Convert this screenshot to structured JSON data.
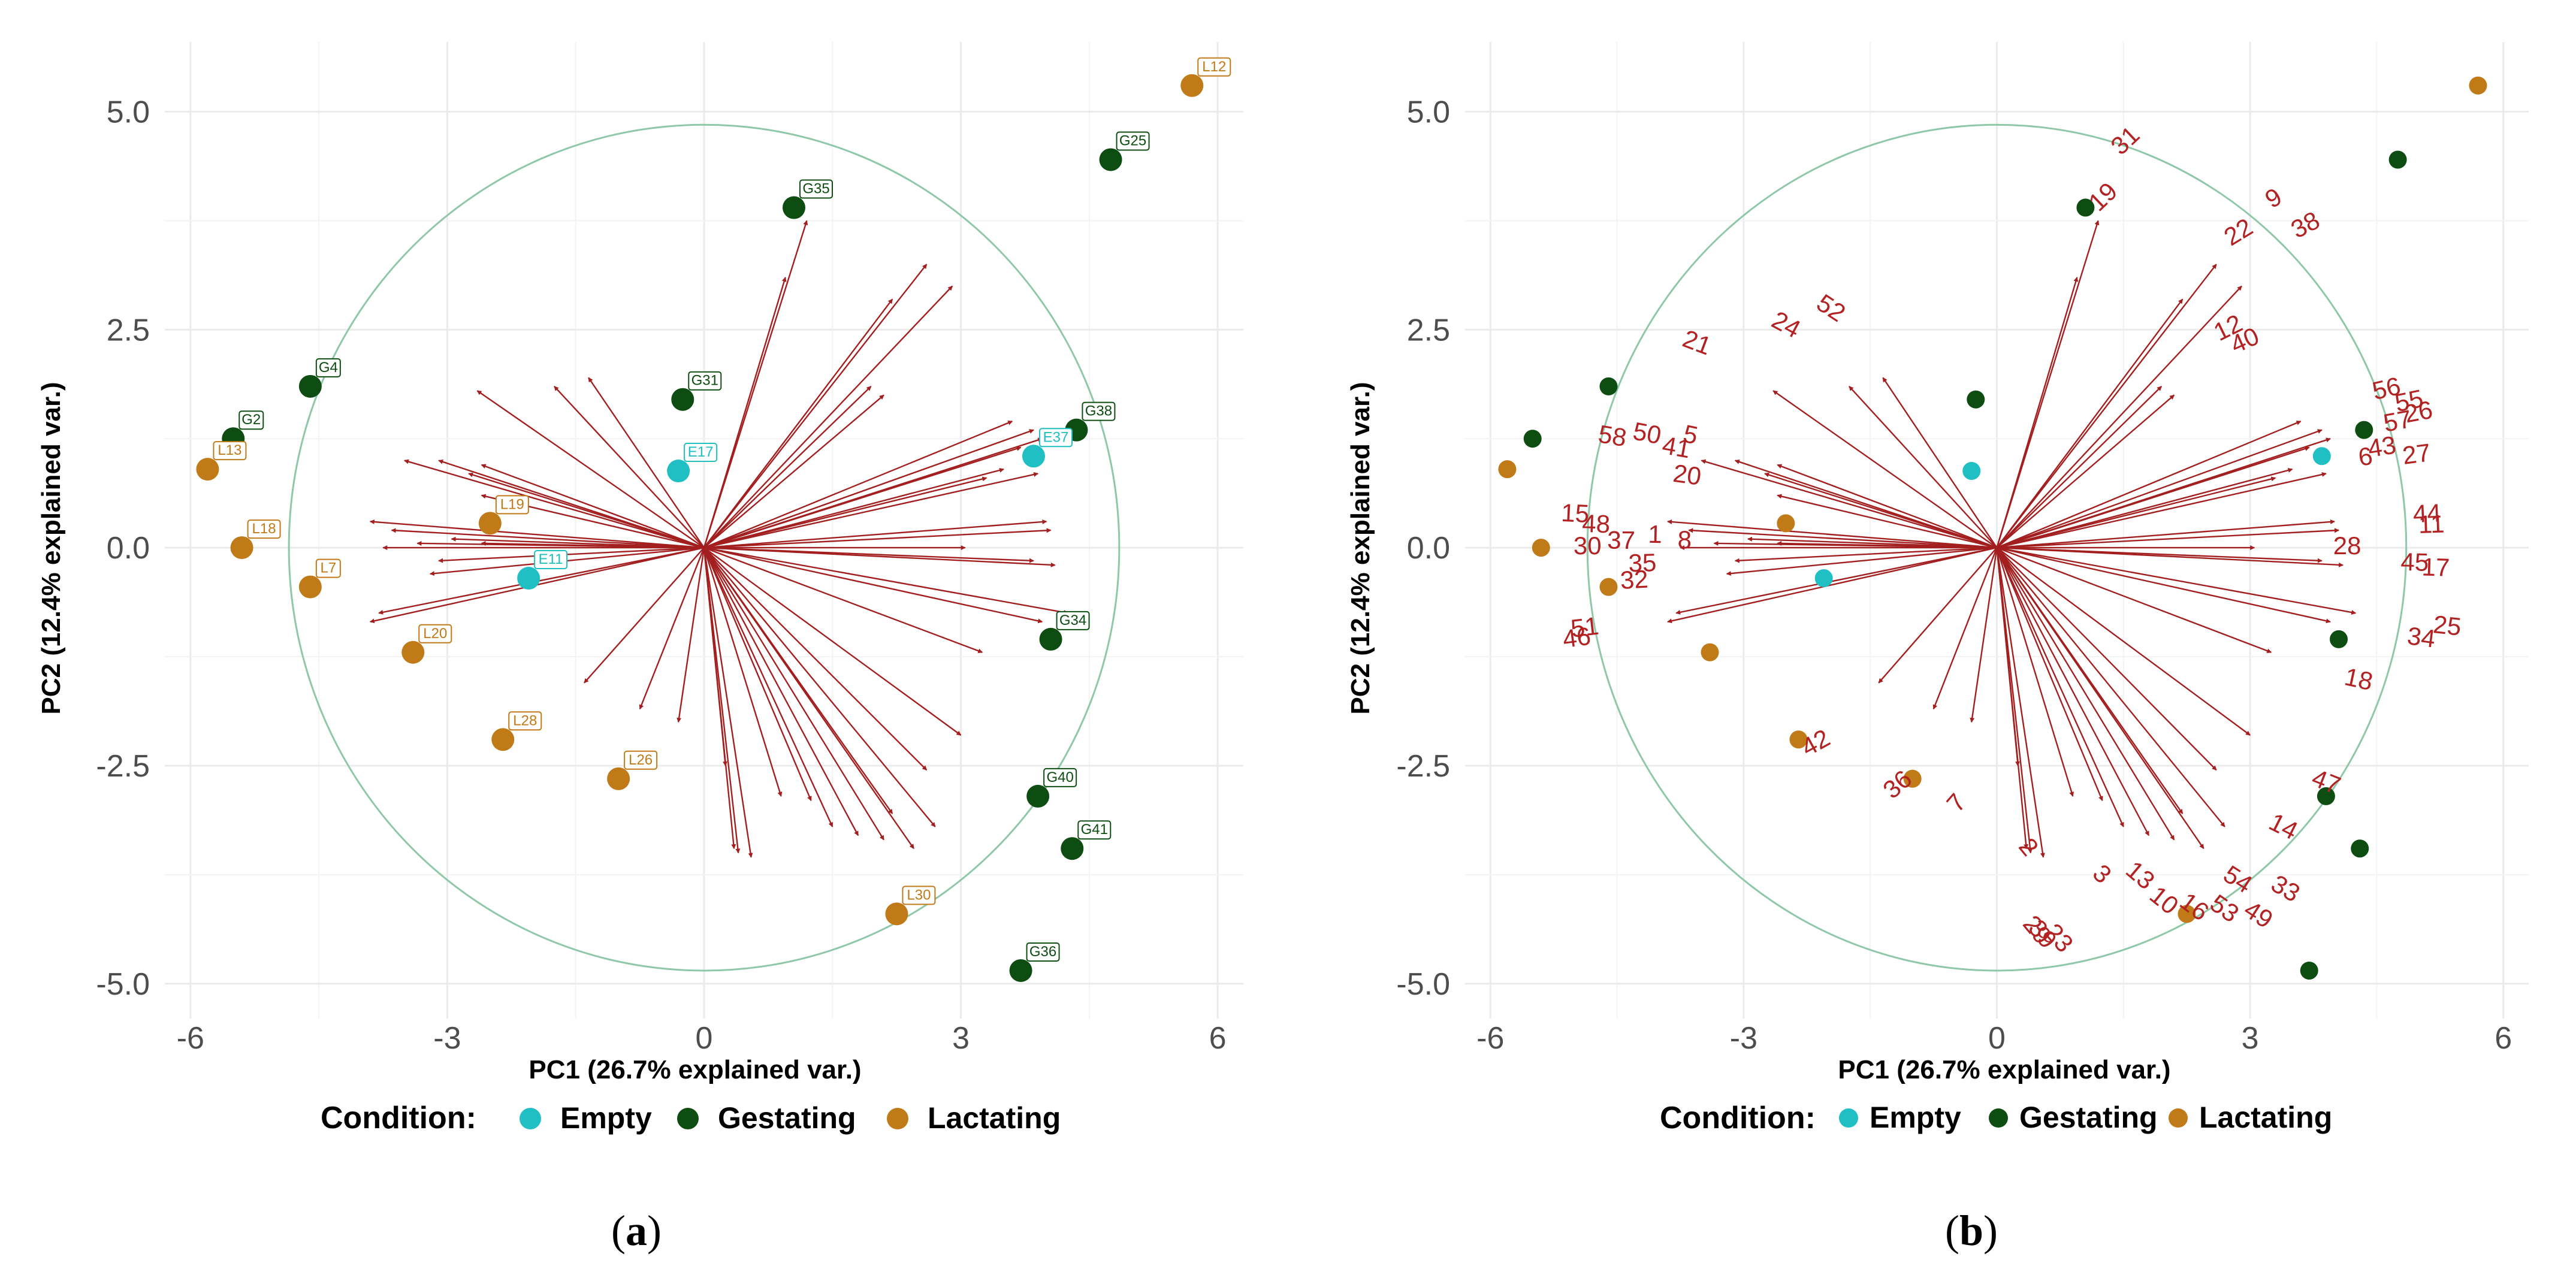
{
  "colors": {
    "empty": "#1fbfc3",
    "gestating": "#0d4d12",
    "lactating": "#c07a18",
    "arrow": "#a31f1f",
    "circle": "#8fc7a9",
    "grid": "#ebebeb"
  },
  "legend": {
    "title": "Condition:",
    "items": [
      {
        "label": "Empty",
        "group": "Empty"
      },
      {
        "label": "Gestating",
        "group": "Gestating"
      },
      {
        "label": "Lactating",
        "group": "Lactating"
      }
    ]
  },
  "panels": [
    {
      "label_open": "(",
      "letter": "a",
      "label_close": ")"
    },
    {
      "label_open": "(",
      "letter": "b",
      "label_close": ")"
    }
  ],
  "chart_data": [
    {
      "type": "scatter",
      "subtype": "pca-biplot",
      "title": "",
      "xlabel": "PC1 (26.7% explained var.)",
      "ylabel": "PC2 (12.4% explained var.)",
      "xlim": [
        -6.3,
        6.3
      ],
      "ylim": [
        -5.4,
        5.8
      ],
      "xticks": [
        -6,
        -3,
        0,
        3,
        6
      ],
      "xtick_labels": [
        "-6",
        "-3",
        "0",
        "3",
        "6"
      ],
      "yticks": [
        5.0,
        2.5,
        0.0,
        -2.5,
        -5.0
      ],
      "ytick_labels": [
        "5.0",
        "2.5",
        "0.0",
        "-2.5",
        "-5.0"
      ],
      "grid": true,
      "legend_position": "bottom",
      "circle_radius": 4.85,
      "point_labels_shown": true,
      "points": [
        {
          "label": "L12",
          "group": "Lactating",
          "x": 5.7,
          "y": 5.3
        },
        {
          "label": "G25",
          "group": "Gestating",
          "x": 4.75,
          "y": 4.45
        },
        {
          "label": "G35",
          "group": "Gestating",
          "x": 1.05,
          "y": 3.9
        },
        {
          "label": "G4",
          "group": "Gestating",
          "x": -4.6,
          "y": 1.85
        },
        {
          "label": "G2",
          "group": "Gestating",
          "x": -5.5,
          "y": 1.25
        },
        {
          "label": "L13",
          "group": "Lactating",
          "x": -5.8,
          "y": 0.9
        },
        {
          "label": "G31",
          "group": "Gestating",
          "x": -0.25,
          "y": 1.7
        },
        {
          "label": "E17",
          "group": "Empty",
          "x": -0.3,
          "y": 0.88
        },
        {
          "label": "G38",
          "group": "Gestating",
          "x": 4.35,
          "y": 1.35
        },
        {
          "label": "E37",
          "group": "Empty",
          "x": 3.85,
          "y": 1.05
        },
        {
          "label": "L18",
          "group": "Lactating",
          "x": -5.4,
          "y": 0.0
        },
        {
          "label": "L19",
          "group": "Lactating",
          "x": -2.5,
          "y": 0.28
        },
        {
          "label": "E11",
          "group": "Empty",
          "x": -2.05,
          "y": -0.35
        },
        {
          "label": "L7",
          "group": "Lactating",
          "x": -4.6,
          "y": -0.45
        },
        {
          "label": "L20",
          "group": "Lactating",
          "x": -3.4,
          "y": -1.2
        },
        {
          "label": "G34",
          "group": "Gestating",
          "x": 4.05,
          "y": -1.05
        },
        {
          "label": "L28",
          "group": "Lactating",
          "x": -2.35,
          "y": -2.2
        },
        {
          "label": "L26",
          "group": "Lactating",
          "x": -1.0,
          "y": -2.65
        },
        {
          "label": "G40",
          "group": "Gestating",
          "x": 3.9,
          "y": -2.85
        },
        {
          "label": "G41",
          "group": "Gestating",
          "x": 4.3,
          "y": -3.45
        },
        {
          "label": "L30",
          "group": "Lactating",
          "x": 2.25,
          "y": -4.2
        },
        {
          "label": "G36",
          "group": "Gestating",
          "x": 3.7,
          "y": -4.85
        }
      ],
      "loadings": [
        {
          "label": "31",
          "x": 1.2,
          "y": 3.75
        },
        {
          "label": "19",
          "x": 0.95,
          "y": 3.1
        },
        {
          "label": "9",
          "x": 2.6,
          "y": 3.25
        },
        {
          "label": "38",
          "x": 2.9,
          "y": 3.0
        },
        {
          "label": "22",
          "x": 2.2,
          "y": 2.85
        },
        {
          "label": "52",
          "x": -1.35,
          "y": 1.95
        },
        {
          "label": "24",
          "x": -1.75,
          "y": 1.85
        },
        {
          "label": "21",
          "x": -2.65,
          "y": 1.8
        },
        {
          "label": "12",
          "x": 1.95,
          "y": 1.85
        },
        {
          "label": "40",
          "x": 2.1,
          "y": 1.75
        },
        {
          "label": "56",
          "x": 3.6,
          "y": 1.45
        },
        {
          "label": "55",
          "x": 3.85,
          "y": 1.35
        },
        {
          "label": "26",
          "x": 3.95,
          "y": 1.25
        },
        {
          "label": "57",
          "x": 3.7,
          "y": 1.15
        },
        {
          "label": "27",
          "x": 3.9,
          "y": 0.85
        },
        {
          "label": "58",
          "x": -3.5,
          "y": 1.0
        },
        {
          "label": "50",
          "x": -3.1,
          "y": 1.0
        },
        {
          "label": "5",
          "x": -2.6,
          "y": 0.95
        },
        {
          "label": "43",
          "x": 3.5,
          "y": 0.9
        },
        {
          "label": "6",
          "x": 3.3,
          "y": 0.8
        },
        {
          "label": "41",
          "x": -2.75,
          "y": 0.85
        },
        {
          "label": "20",
          "x": -2.6,
          "y": 0.6
        },
        {
          "label": "44",
          "x": 4.0,
          "y": 0.3
        },
        {
          "label": "11",
          "x": 4.05,
          "y": 0.2
        },
        {
          "label": "15",
          "x": -3.9,
          "y": 0.3
        },
        {
          "label": "48",
          "x": -3.65,
          "y": 0.2
        },
        {
          "label": "1",
          "x": -2.95,
          "y": 0.1
        },
        {
          "label": "8",
          "x": -2.6,
          "y": 0.05
        },
        {
          "label": "37",
          "x": -3.35,
          "y": 0.05
        },
        {
          "label": "30",
          "x": -3.75,
          "y": 0.0
        },
        {
          "label": "28",
          "x": 3.05,
          "y": 0.0
        },
        {
          "label": "35",
          "x": -3.1,
          "y": -0.15
        },
        {
          "label": "32",
          "x": -3.2,
          "y": -0.3
        },
        {
          "label": "17",
          "x": 4.1,
          "y": -0.2
        },
        {
          "label": "45",
          "x": 3.85,
          "y": -0.15
        },
        {
          "label": "51",
          "x": -3.8,
          "y": -0.75
        },
        {
          "label": "46",
          "x": -3.9,
          "y": -0.85
        },
        {
          "label": "34",
          "x": 3.95,
          "y": -0.85
        },
        {
          "label": "25",
          "x": 4.25,
          "y": -0.75
        },
        {
          "label": "18",
          "x": 3.25,
          "y": -1.2
        },
        {
          "label": "42",
          "x": -1.4,
          "y": -1.55
        },
        {
          "label": "36",
          "x": -0.75,
          "y": -1.85
        },
        {
          "label": "7",
          "x": -0.3,
          "y": -2.0
        },
        {
          "label": "47",
          "x": 3.0,
          "y": -2.15
        },
        {
          "label": "14",
          "x": 2.6,
          "y": -2.55
        },
        {
          "label": "2",
          "x": 0.25,
          "y": -2.5
        },
        {
          "label": "3",
          "x": 0.9,
          "y": -2.85
        },
        {
          "label": "13",
          "x": 1.25,
          "y": -2.9
        },
        {
          "label": "10",
          "x": 1.5,
          "y": -3.2
        },
        {
          "label": "16",
          "x": 1.8,
          "y": -3.3
        },
        {
          "label": "33",
          "x": 2.7,
          "y": -3.2
        },
        {
          "label": "54",
          "x": 2.2,
          "y": -3.05
        },
        {
          "label": "53",
          "x": 2.1,
          "y": -3.35
        },
        {
          "label": "49",
          "x": 2.45,
          "y": -3.45
        },
        {
          "label": "29",
          "x": 0.35,
          "y": -3.45
        },
        {
          "label": "39",
          "x": 0.4,
          "y": -3.5
        },
        {
          "label": "23",
          "x": 0.55,
          "y": -3.55
        }
      ]
    },
    {
      "type": "scatter",
      "subtype": "pca-biplot",
      "title": "",
      "xlabel": "PC1 (26.7% explained var.)",
      "ylabel": "PC2 (12.4% explained var.)",
      "xlim": [
        -6.3,
        6.3
      ],
      "ylim": [
        -5.4,
        5.8
      ],
      "xticks": [
        -6,
        -3,
        0,
        3,
        6
      ],
      "xtick_labels": [
        "-6",
        "-3",
        "0",
        "3",
        "6"
      ],
      "yticks": [
        5.0,
        2.5,
        0.0,
        -2.5,
        -5.0
      ],
      "ytick_labels": [
        "5.0",
        "2.5",
        "0.0",
        "-2.5",
        "-5.0"
      ],
      "grid": true,
      "legend_position": "bottom",
      "circle_radius": 4.85,
      "point_labels_shown": false,
      "loading_labels_shown": true,
      "shares_points_and_loadings_with": "panel a"
    }
  ]
}
